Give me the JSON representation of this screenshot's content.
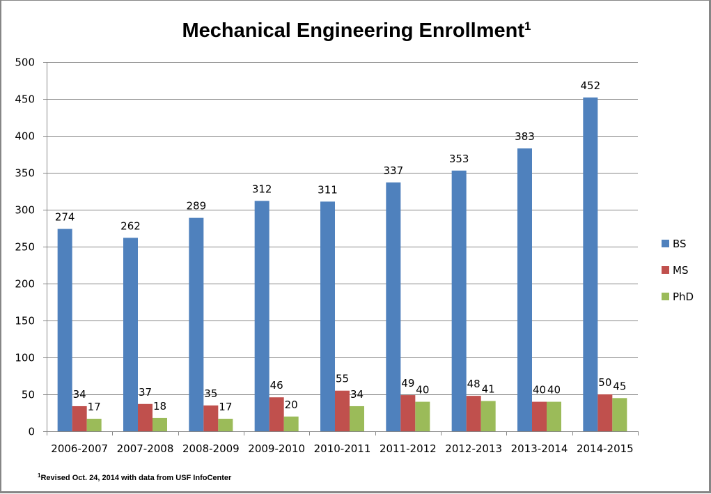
{
  "chart_data": {
    "type": "bar",
    "title": "Mechanical Engineering Enrollment",
    "title_superscript": "1",
    "xlabel": "",
    "ylabel": "",
    "ylim": [
      0,
      500
    ],
    "yticks": [
      0,
      50,
      100,
      150,
      200,
      250,
      300,
      350,
      400,
      450,
      500
    ],
    "grid": true,
    "legend_position": "right",
    "categories": [
      "2006-2007",
      "2007-2008",
      "2008-2009",
      "2009-2010",
      "2010-2011",
      "2011-2012",
      "2012-2013",
      "2013-2014",
      "2014-2015"
    ],
    "series": [
      {
        "name": "BS",
        "color": "#4F81BD",
        "values": [
          274,
          262,
          289,
          312,
          311,
          337,
          353,
          383,
          452
        ]
      },
      {
        "name": "MS",
        "color": "#C0504D",
        "values": [
          34,
          37,
          35,
          46,
          55,
          49,
          48,
          40,
          50
        ]
      },
      {
        "name": "PhD",
        "color": "#9BBB59",
        "values": [
          17,
          18,
          17,
          20,
          34,
          40,
          41,
          40,
          45
        ]
      }
    ],
    "data_labels": true,
    "footnote": {
      "superscript": "1",
      "text": "Revised Oct. 24, 2014 with data from USF InfoCenter"
    }
  }
}
